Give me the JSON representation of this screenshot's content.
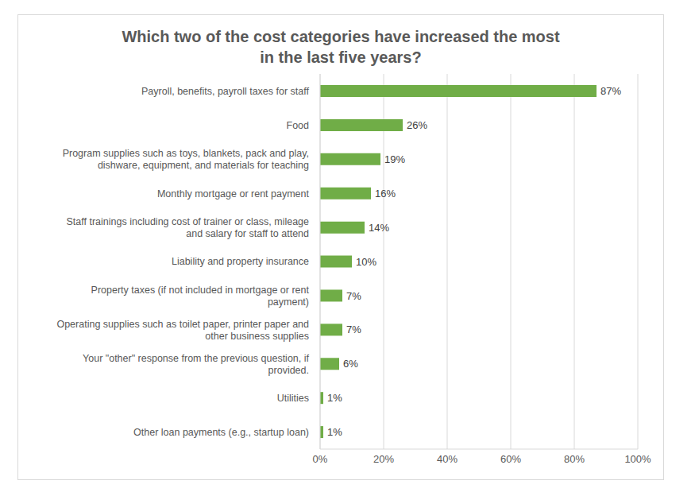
{
  "chart_data": {
    "type": "bar",
    "title": "Which two of the cost categories have increased the most in the last five years?",
    "orientation": "horizontal",
    "categories": [
      "Payroll, benefits, payroll taxes for staff",
      "Food",
      "Program supplies such as toys, blankets, pack and play, dishware, equipment, and materials for teaching",
      "Monthly mortgage or rent payment",
      "Staff trainings including cost of trainer or class, mileage and salary for staff to attend",
      "Liability and property insurance",
      "Property taxes (if not included in mortgage or rent payment)",
      "Operating supplies such as toilet paper, printer paper and other business supplies",
      "Your \"other\" response from the previous question, if provided.",
      "Utilities",
      "Other loan payments (e.g., startup loan)"
    ],
    "values": [
      87,
      26,
      19,
      16,
      14,
      10,
      7,
      7,
      6,
      1,
      1
    ],
    "value_labels": [
      "87%",
      "26%",
      "19%",
      "16%",
      "14%",
      "10%",
      "7%",
      "7%",
      "6%",
      "1%",
      "1%"
    ],
    "data_labels": true,
    "color": "#70ad47",
    "xlim": [
      0,
      100
    ],
    "xticks": [
      {
        "value": 0,
        "label": "0%"
      },
      {
        "value": 20,
        "label": "20%"
      },
      {
        "value": 40,
        "label": "40%"
      },
      {
        "value": 60,
        "label": "60%"
      },
      {
        "value": 80,
        "label": "80%"
      },
      {
        "value": 100,
        "label": "100%"
      }
    ],
    "grid": true
  }
}
